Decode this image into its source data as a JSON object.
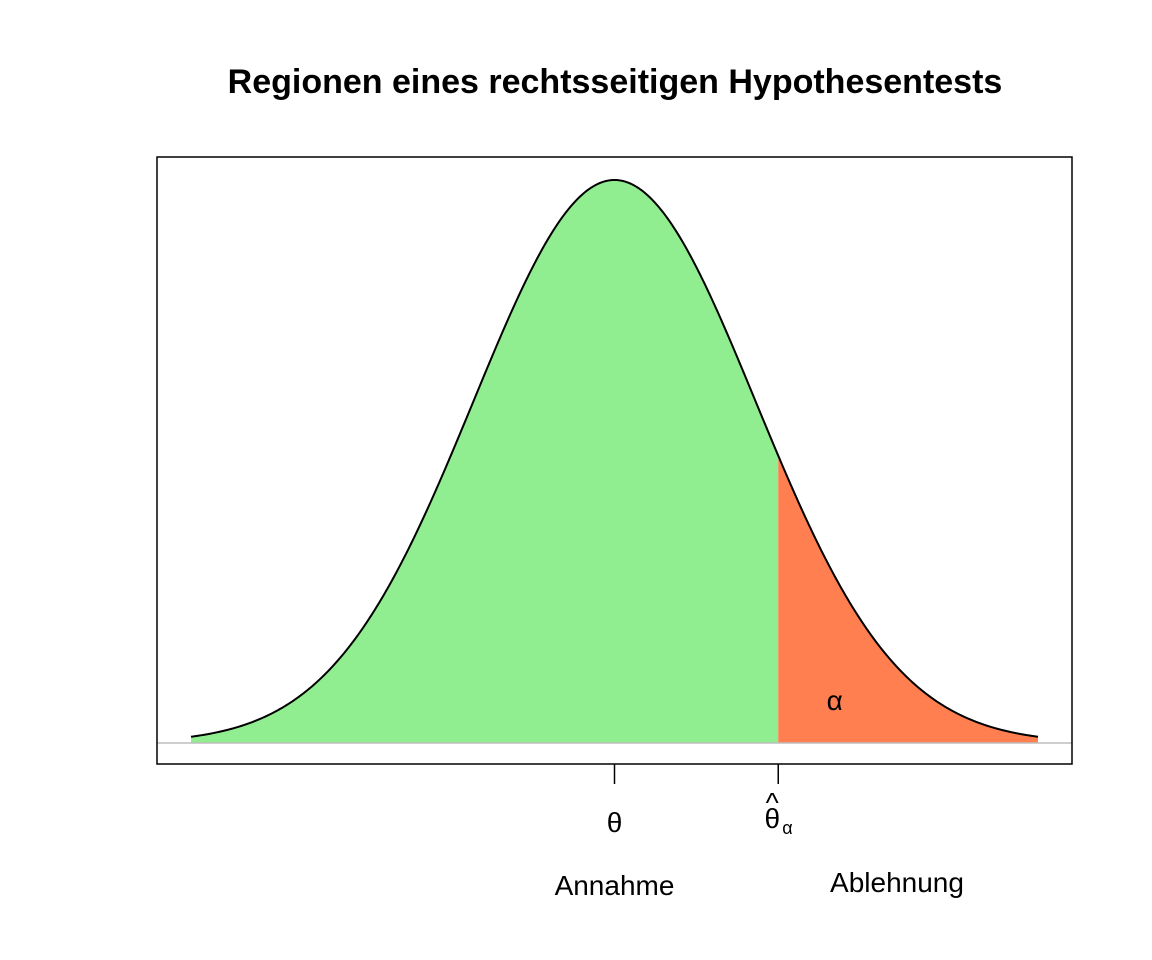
{
  "chart_data": {
    "type": "area",
    "title": "Regionen eines rechtsseitigen Hypothesentests",
    "distribution": "normal",
    "mean": 0,
    "sd": 1,
    "x_range": [
      -3,
      3
    ],
    "critical_value": 1.16,
    "regions": [
      {
        "name": "Annahme",
        "from": -3,
        "to": 1.16,
        "color": "#90ee90"
      },
      {
        "name": "Ablehnung",
        "from": 1.16,
        "to": 3,
        "color": "#ff7f50"
      }
    ],
    "ticks": [
      {
        "value": 0,
        "label": "θ"
      },
      {
        "value": 1.16,
        "label": "θ",
        "subscript": "α",
        "accent": "^"
      }
    ],
    "annotations": [
      {
        "label": "α",
        "region": "Ablehnung"
      }
    ],
    "region_labels": [
      "Annahme",
      "Ablehnung"
    ],
    "grid": false
  }
}
